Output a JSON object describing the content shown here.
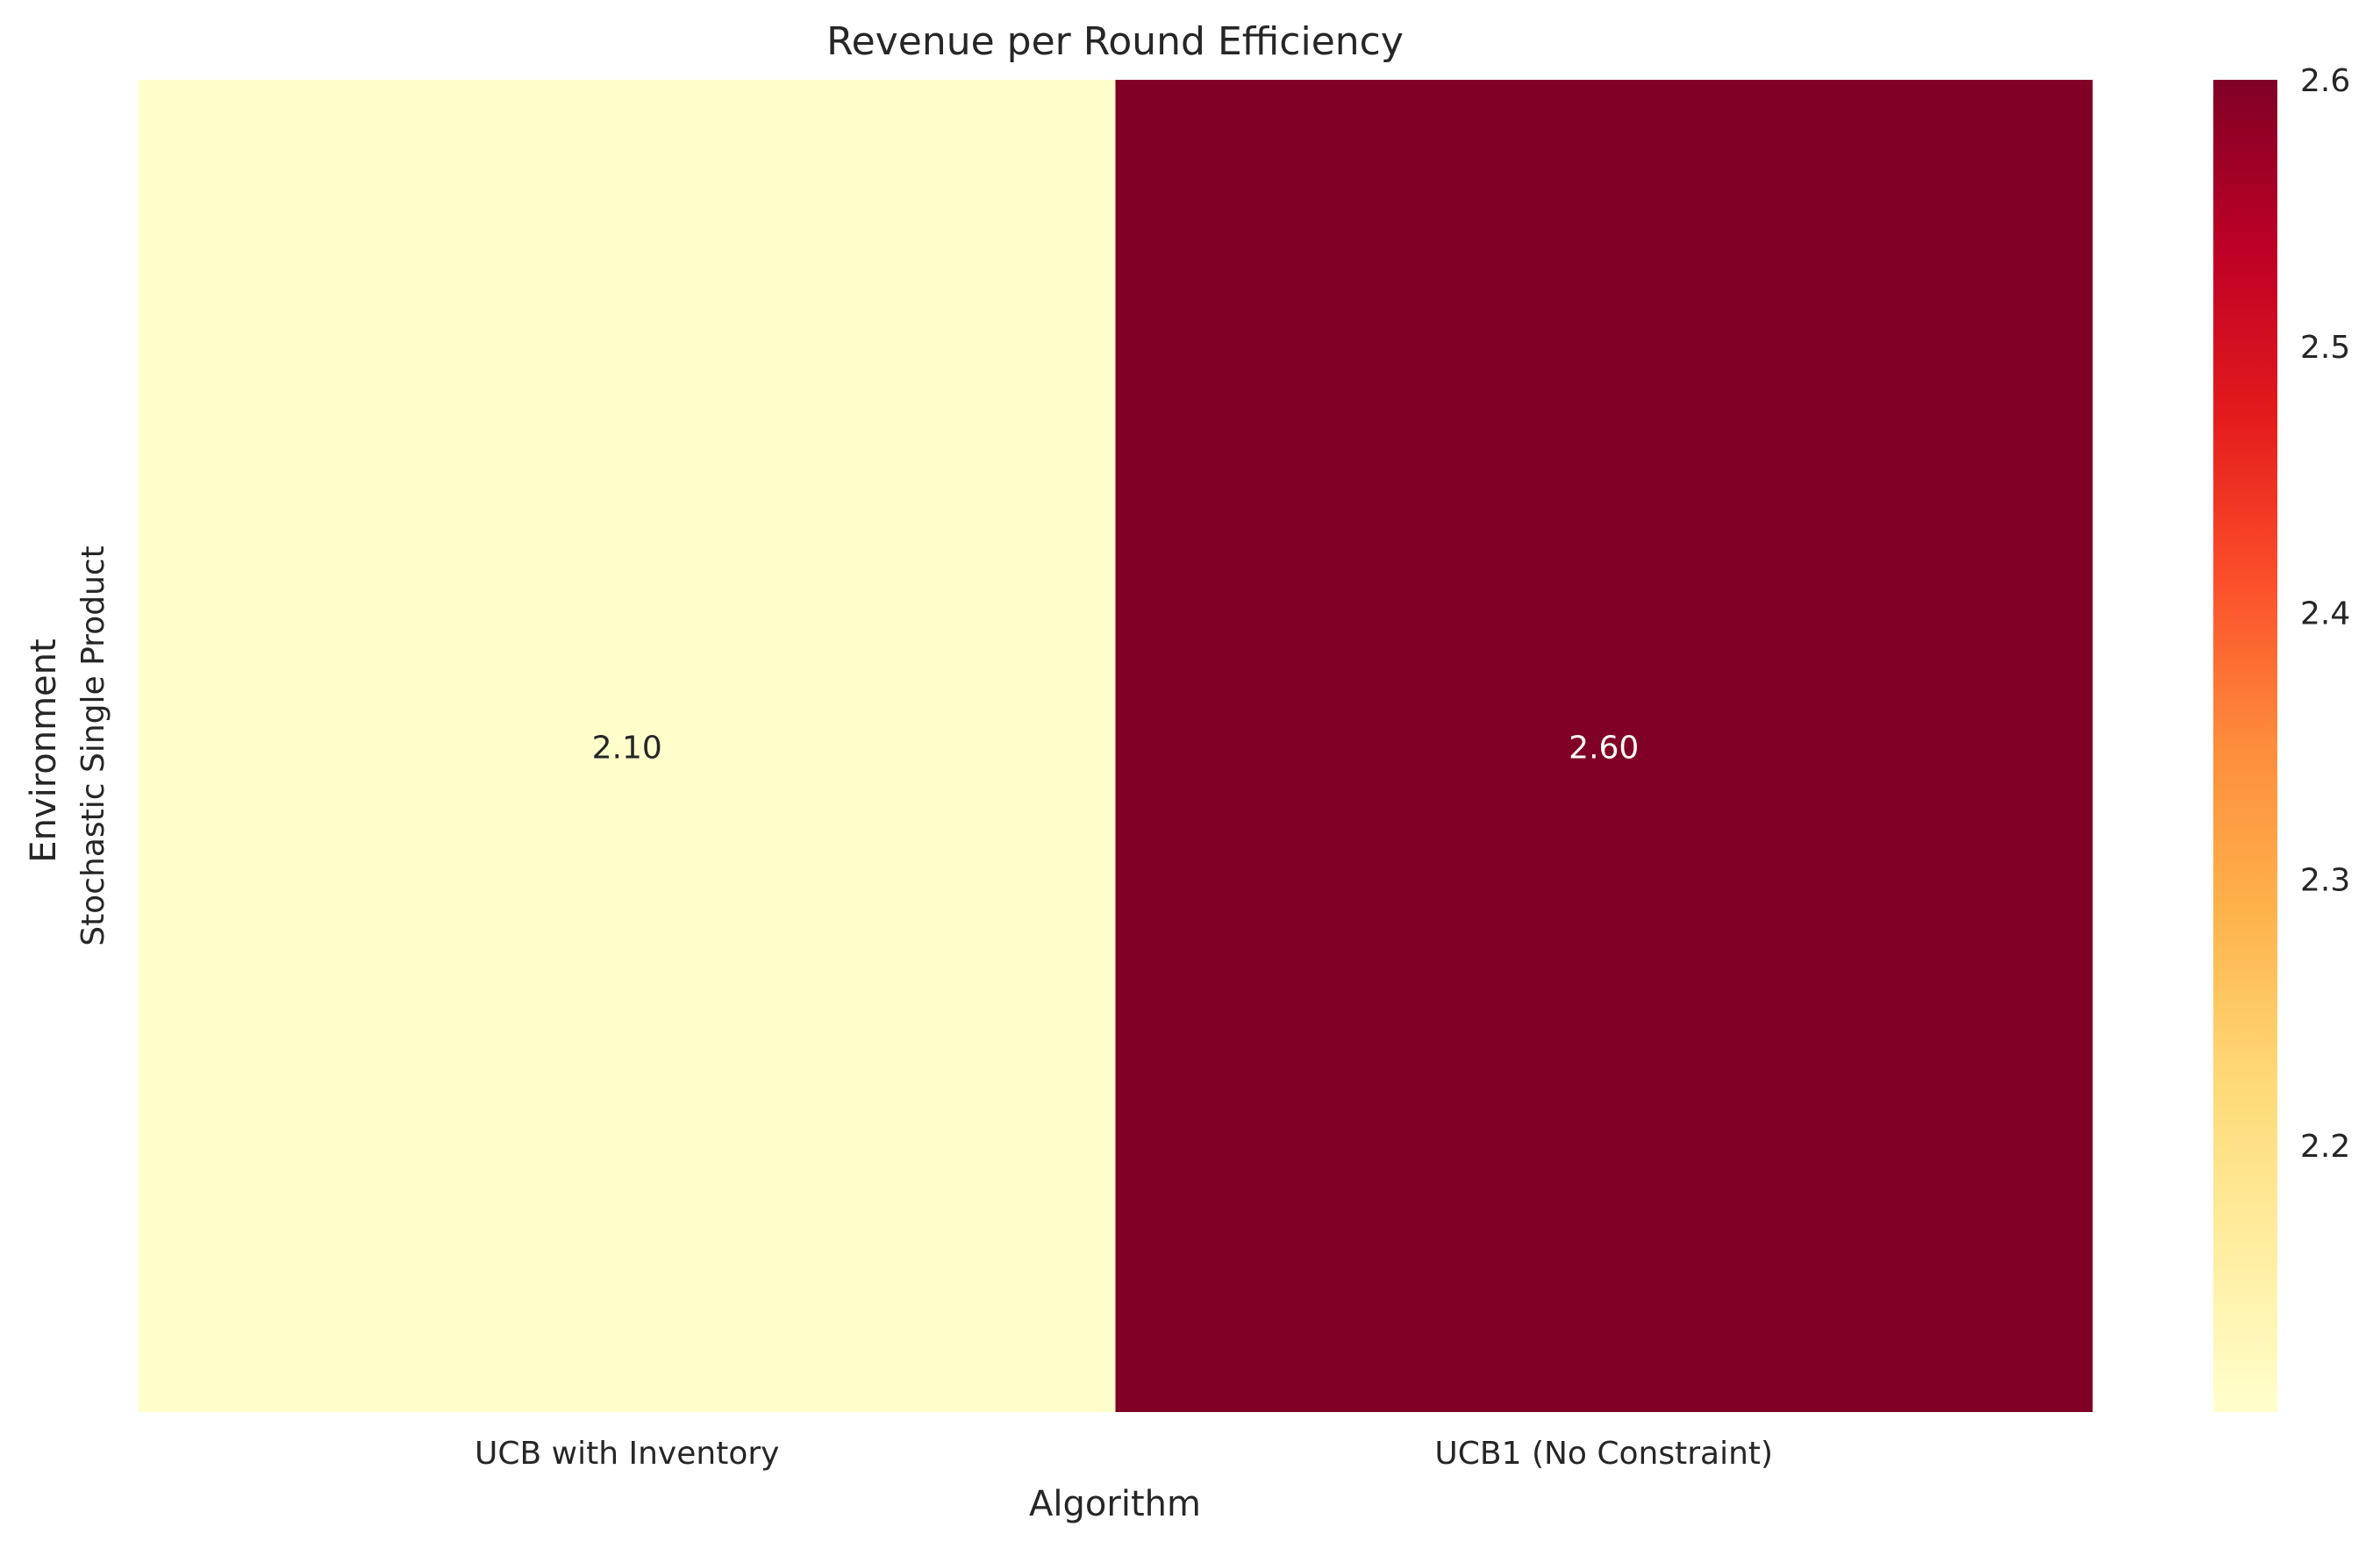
{
  "chart_data": {
    "type": "heatmap",
    "title": "Revenue per Round Efficiency",
    "xlabel": "Algorithm",
    "ylabel": "Environment",
    "x_categories": [
      "UCB with Inventory",
      "UCB1 (No Constraint)"
    ],
    "y_categories": [
      "Stochastic Single Product"
    ],
    "values": [
      [
        2.1,
        2.6
      ]
    ],
    "value_labels": [
      [
        "2.10",
        "2.60"
      ]
    ],
    "colormap": "YlOrRd",
    "color_range": [
      2.1,
      2.6
    ],
    "colorbar": {
      "ticks": [
        2.2,
        2.3,
        2.4,
        2.5,
        2.6
      ],
      "tick_labels": [
        "2.2",
        "2.3",
        "2.4",
        "2.5",
        "2.6"
      ]
    },
    "colors": {
      "low": "#ffffcc",
      "high": "#800026",
      "text_dark": "#262626",
      "text_light": "#ffffff"
    }
  }
}
